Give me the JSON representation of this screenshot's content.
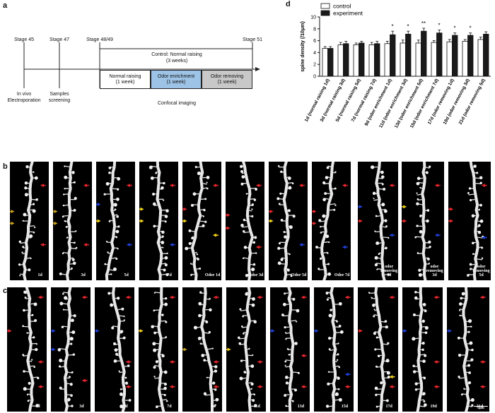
{
  "panels": {
    "a": "a",
    "b": "b",
    "c": "c",
    "d": "d"
  },
  "timeline": {
    "stages": [
      "Stage 45",
      "Stage 47",
      "Stage 48/49",
      "Stage 51"
    ],
    "control_label_1": "Control: Normal raising",
    "control_label_2": "(3 weeks)",
    "boxes": [
      {
        "l1": "Normal raising",
        "l2": "(1 week)"
      },
      {
        "l1": "Odor enrichment",
        "l2": "(1 week)"
      },
      {
        "l1": "Odor removing",
        "l2": "(1 week)"
      }
    ],
    "below": {
      "invivo_1": "In vivo",
      "invivo_2": "Electroporation",
      "samples_1": "Samples",
      "samples_2": "screening",
      "confocal": "Confocal imaging"
    },
    "colors": {
      "enrichment": "#9dc3e6",
      "removing": "#c8c8c8"
    }
  },
  "chart_data": {
    "type": "bar",
    "ylabel": "spine density (/10μm)",
    "ylim": [
      0,
      10
    ],
    "yticks": [
      0,
      2,
      4,
      6,
      8,
      10
    ],
    "legend_position": "top",
    "categories": [
      "1d (normal raising 1d)",
      "3d (normal raising 3d)",
      "5d (normal raising 5d)",
      "7d (normal raising 7d)",
      "9d (odor enrichment 1d)",
      "11d (odor enrichment 3d)",
      "13d (odor enrichment 5d)",
      "15d (odor enrichment 7d)",
      "17d (odor removing 1d)",
      "19d (odor removing 3d)",
      "21d (odor removing 5d)"
    ],
    "series": [
      {
        "name": "control",
        "color": "#ffffff",
        "values": [
          4.7,
          5.3,
          5.3,
          5.3,
          5.5,
          5.6,
          5.6,
          5.7,
          5.8,
          5.9,
          6.2
        ],
        "errors": [
          0.3,
          0.4,
          0.3,
          0.4,
          0.4,
          0.5,
          0.5,
          0.3,
          0.4,
          0.3,
          0.4
        ]
      },
      {
        "name": "experiment",
        "color": "#1a1a1a",
        "values": [
          4.7,
          5.5,
          5.6,
          5.5,
          7.0,
          7.1,
          7.6,
          7.3,
          6.9,
          6.9,
          7.1
        ],
        "errors": [
          0.3,
          0.4,
          0.3,
          0.4,
          0.6,
          0.5,
          0.5,
          0.5,
          0.4,
          0.4,
          0.4
        ]
      }
    ],
    "significance": [
      "",
      "",
      "",
      "",
      "*",
      "*",
      "**",
      "*",
      "*",
      "*",
      ""
    ]
  },
  "row_b": {
    "labels": [
      "1d",
      "3d",
      "5d",
      "7d",
      "Odor 1d",
      "Odor 3d",
      "Odor 5d",
      "Odor 7d",
      "odor removing 1d",
      "odor removing 3d",
      "odor removing 5d"
    ]
  },
  "row_c": {
    "labels": [
      "1d",
      "3d",
      "5d",
      "7d",
      "9d",
      "11d",
      "13d",
      "15d",
      "17d",
      "19d",
      "21d"
    ],
    "scale_bar": "2μm"
  }
}
